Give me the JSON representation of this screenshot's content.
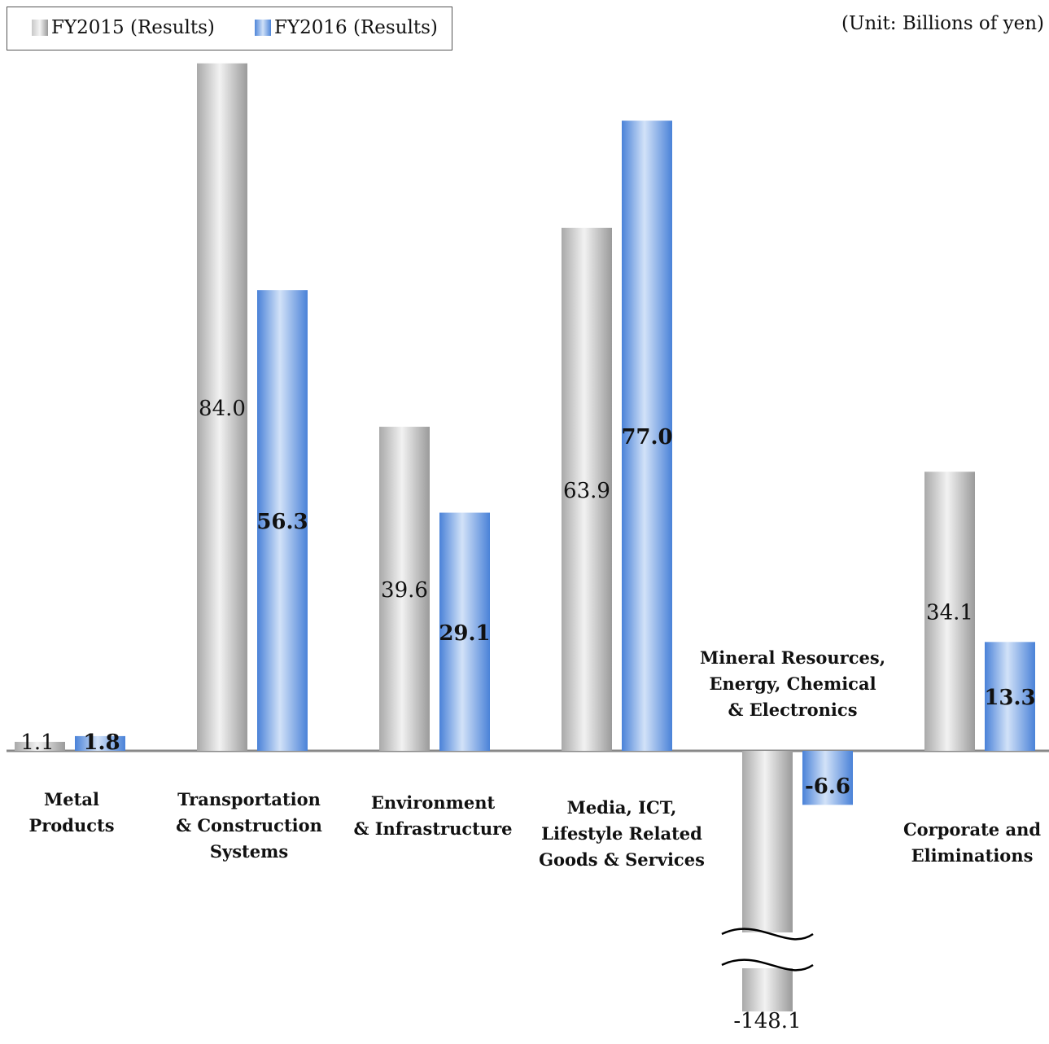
{
  "legend": {
    "fy2015": "FY2015 (Results)",
    "fy2016": "FY2016 (Results)"
  },
  "unit_label": "(Unit: Billions of yen)",
  "colors": {
    "fy2015": "#b8b8b8",
    "fy2016": "#6a9be0",
    "axis": "#888888",
    "text": "#111111"
  },
  "chart_data": {
    "type": "bar",
    "categories": [
      "Metal\nProducts",
      "Transportation\n& Construction\nSystems",
      "Environment\n& Infrastructure",
      "Media, ICT,\nLifestyle Related\nGoods & Services",
      "Mineral Resources,\nEnergy, Chemical\n& Electronics",
      "Corporate and\nEliminations"
    ],
    "series": [
      {
        "name": "FY2015 (Results)",
        "values": [
          1.1,
          84.0,
          39.6,
          63.9,
          -148.1,
          34.1
        ],
        "labels": [
          "1.1",
          "84.0",
          "39.6",
          "63.9",
          "-148.1",
          "34.1"
        ]
      },
      {
        "name": "FY2016 (Results)",
        "values": [
          1.8,
          56.3,
          29.1,
          77.0,
          -6.6,
          13.3
        ],
        "labels": [
          "1.8",
          "56.3",
          "29.1",
          "77.0",
          "-6.6",
          "13.3"
        ]
      }
    ],
    "axis_break": {
      "category_index": 4,
      "series_index": 0
    },
    "grid": false,
    "legend_position": "top-left"
  }
}
